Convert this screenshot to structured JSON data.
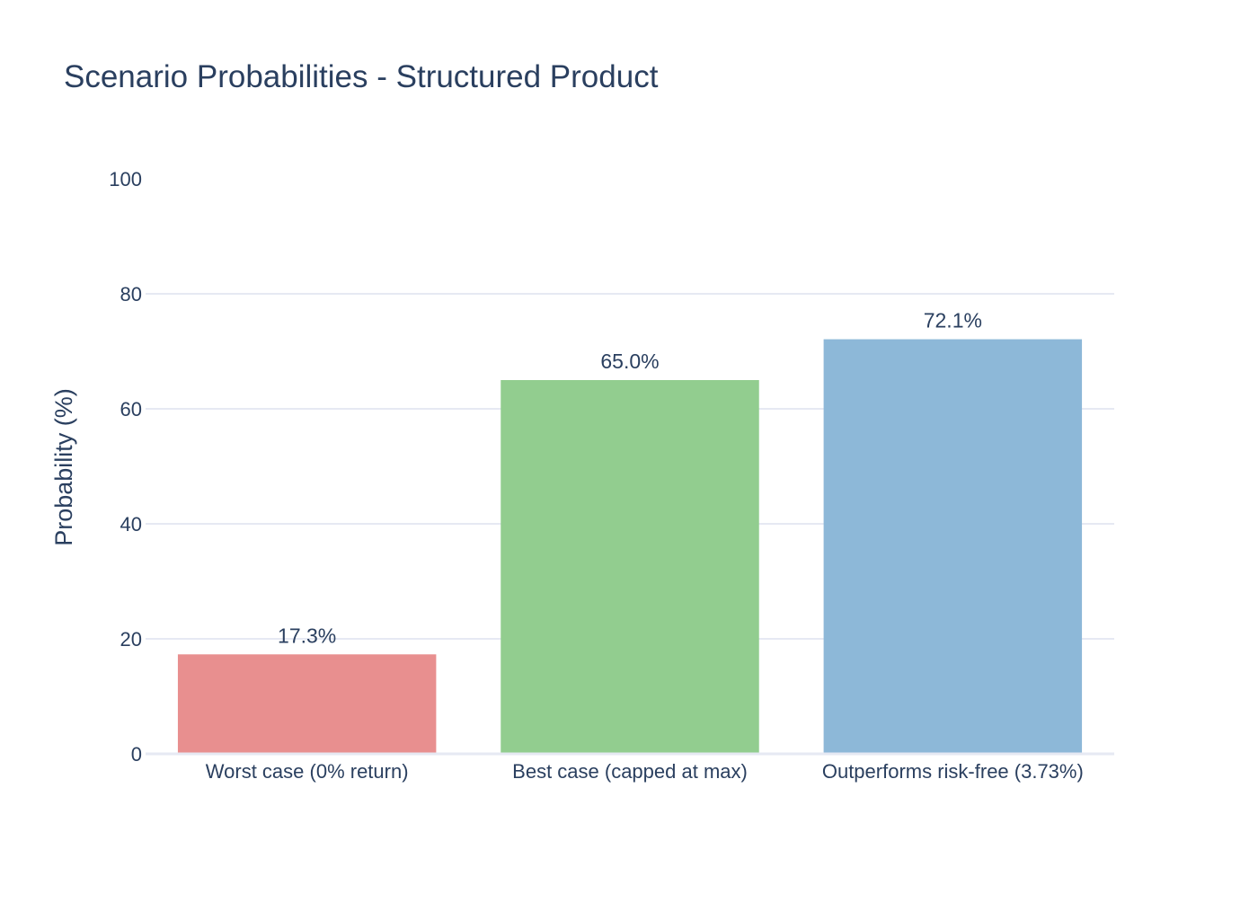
{
  "chart_data": {
    "type": "bar",
    "title": "Scenario Probabilities - Structured Product",
    "xlabel": "",
    "ylabel": "Probability (%)",
    "categories": [
      "Worst case (0% return)",
      "Best case (capped at max)",
      "Outperforms risk-free (3.73%)"
    ],
    "values": [
      17.3,
      65.0,
      72.1
    ],
    "data_labels": [
      "17.3%",
      "65.0%",
      "72.1%"
    ],
    "bar_colors": [
      "#e88f8f",
      "#92cd8f",
      "#8db8d8"
    ],
    "ylim": [
      0,
      100
    ],
    "yticks": [
      0,
      20,
      40,
      60,
      80,
      100
    ],
    "grid": true,
    "legend": "none"
  }
}
